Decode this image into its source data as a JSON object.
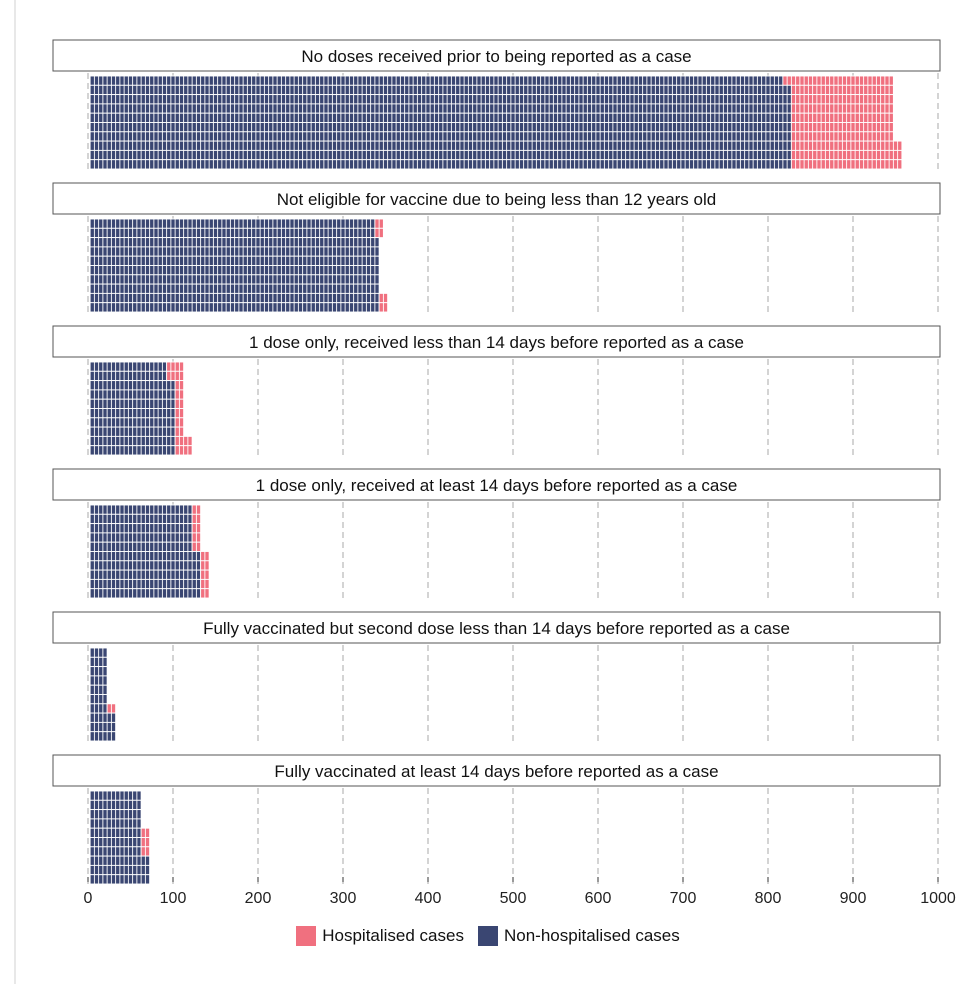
{
  "chart_data": {
    "type": "waffle-bar",
    "xlim": [
      0,
      1000
    ],
    "x_ticks": [
      "0",
      "100",
      "200",
      "300",
      "400",
      "500",
      "600",
      "700",
      "800",
      "900",
      "1000"
    ],
    "units_per_cell": 5,
    "rows_per_panel": 10,
    "grid": true,
    "legend_position": "bottom",
    "series": [
      {
        "name": "Hospitalised cases",
        "color": "#f0707f"
      },
      {
        "name": "Non-hospitalised cases",
        "color": "#3a4672"
      }
    ],
    "panels": [
      {
        "title": "No doses received prior to being reported as a case",
        "rows": [
          [
            815,
            130
          ],
          [
            825,
            120
          ],
          [
            825,
            120
          ],
          [
            825,
            120
          ],
          [
            825,
            120
          ],
          [
            825,
            120
          ],
          [
            825,
            120
          ],
          [
            825,
            130
          ],
          [
            825,
            130
          ],
          [
            825,
            130
          ]
        ]
      },
      {
        "title": "Not eligible for vaccine due to being less than 12 years old",
        "rows": [
          [
            335,
            10
          ],
          [
            335,
            10
          ],
          [
            340,
            0
          ],
          [
            340,
            0
          ],
          [
            340,
            0
          ],
          [
            340,
            0
          ],
          [
            340,
            0
          ],
          [
            340,
            0
          ],
          [
            340,
            10
          ],
          [
            340,
            10
          ]
        ]
      },
      {
        "title": "1 dose only, received less than 14 days before reported as a case",
        "rows": [
          [
            90,
            20
          ],
          [
            90,
            20
          ],
          [
            100,
            10
          ],
          [
            100,
            10
          ],
          [
            100,
            10
          ],
          [
            100,
            10
          ],
          [
            100,
            10
          ],
          [
            100,
            10
          ],
          [
            100,
            20
          ],
          [
            100,
            20
          ]
        ]
      },
      {
        "title": "1 dose only, received at least 14 days before reported as a case",
        "rows": [
          [
            120,
            10
          ],
          [
            120,
            10
          ],
          [
            120,
            10
          ],
          [
            120,
            10
          ],
          [
            120,
            10
          ],
          [
            130,
            10
          ],
          [
            130,
            10
          ],
          [
            130,
            10
          ],
          [
            130,
            10
          ],
          [
            130,
            10
          ]
        ]
      },
      {
        "title": "Fully vaccinated but second dose less than 14 days before reported as a case",
        "rows": [
          [
            20,
            0
          ],
          [
            20,
            0
          ],
          [
            20,
            0
          ],
          [
            20,
            0
          ],
          [
            20,
            0
          ],
          [
            20,
            0
          ],
          [
            20,
            10
          ],
          [
            30,
            0
          ],
          [
            30,
            0
          ],
          [
            30,
            0
          ]
        ]
      },
      {
        "title": "Fully vaccinated at least 14 days before reported as a case",
        "rows": [
          [
            60,
            0
          ],
          [
            60,
            0
          ],
          [
            60,
            0
          ],
          [
            60,
            0
          ],
          [
            60,
            10
          ],
          [
            60,
            10
          ],
          [
            60,
            10
          ],
          [
            70,
            0
          ],
          [
            70,
            0
          ],
          [
            70,
            0
          ]
        ]
      }
    ]
  }
}
